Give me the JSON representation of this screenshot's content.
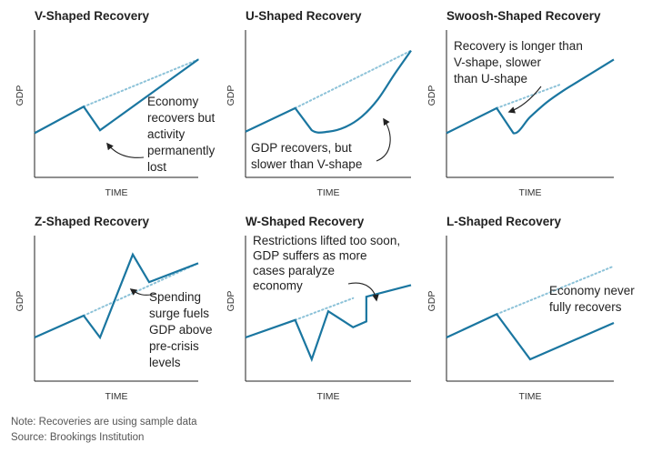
{
  "notes": {
    "note": "Note: Recoveries are using sample data",
    "source": "Source: Brookings Institution"
  },
  "colors": {
    "line": "#1a76a0",
    "trend": "#8cc2d8",
    "axis": "#222222",
    "text": "#222222"
  },
  "chart_data": [
    {
      "type": "line",
      "title": "V-Shaped Recovery",
      "xlabel": "TIME",
      "ylabel": "GDP",
      "xlim": [
        0,
        10
      ],
      "ylim": [
        0,
        10
      ],
      "series": [
        {
          "x": [
            0,
            3,
            4,
            10
          ],
          "y": [
            3,
            4.8,
            3.2,
            8
          ]
        }
      ],
      "trend": {
        "x": [
          3,
          10
        ],
        "y": [
          4.8,
          8
        ]
      },
      "annotation": {
        "lines": [
          "Economy",
          "recovers but",
          "activity",
          "permanently",
          "lost"
        ]
      }
    },
    {
      "type": "line",
      "title": "U-Shaped Recovery",
      "xlabel": "TIME",
      "ylabel": "GDP",
      "xlim": [
        0,
        10
      ],
      "ylim": [
        0,
        10
      ],
      "series": [
        {
          "x": [
            0,
            3,
            4,
            5,
            6,
            7,
            8,
            9,
            10
          ],
          "y": [
            3.1,
            4.7,
            3.2,
            3.1,
            3.4,
            4.1,
            5.3,
            7.0,
            8.6
          ]
        }
      ],
      "trend": {
        "x": [
          3,
          10
        ],
        "y": [
          4.7,
          8.6
        ]
      },
      "annotation": {
        "lines": [
          "GDP recovers, but",
          "slower than V-shape"
        ]
      }
    },
    {
      "type": "line",
      "title": "Swoosh-Shaped Recovery",
      "xlabel": "TIME",
      "ylabel": "GDP",
      "xlim": [
        0,
        10
      ],
      "ylim": [
        0,
        10
      ],
      "series": [
        {
          "x": [
            0,
            3,
            4,
            5,
            6,
            7,
            8,
            10
          ],
          "y": [
            3,
            4.7,
            3,
            4.1,
            5.1,
            5.9,
            6.6,
            8
          ]
        }
      ],
      "trend": {
        "x": [
          3,
          6.8
        ],
        "y": [
          4.7,
          6.3
        ]
      },
      "annotation": {
        "lines": [
          "Recovery is longer than",
          "V-shape, slower",
          "than U-shape"
        ]
      }
    },
    {
      "type": "line",
      "title": "Z-Shaped Recovery",
      "xlabel": "TIME",
      "ylabel": "GDP",
      "xlim": [
        0,
        10
      ],
      "ylim": [
        0,
        10
      ],
      "series": [
        {
          "x": [
            0,
            3,
            4,
            6,
            7,
            10
          ],
          "y": [
            3,
            4.5,
            3,
            8.7,
            6.8,
            8.1
          ]
        }
      ],
      "trend": {
        "x": [
          3,
          10
        ],
        "y": [
          4.5,
          8.1
        ]
      },
      "annotation": {
        "lines": [
          "Spending",
          "surge fuels",
          "GDP above",
          "pre-crisis",
          "levels"
        ]
      }
    },
    {
      "type": "line",
      "title": "W-Shaped Recovery",
      "xlabel": "TIME",
      "ylabel": "GDP",
      "xlim": [
        0,
        10
      ],
      "ylim": [
        0,
        10
      ],
      "series": [
        {
          "x": [
            0,
            3,
            4,
            5,
            6.5,
            7.3,
            7.3,
            10
          ],
          "y": [
            3,
            4.2,
            1.5,
            4.8,
            3.7,
            4.1,
            5.8,
            6.6
          ]
        }
      ],
      "trend": {
        "x": [
          3,
          6.5
        ],
        "y": [
          4.2,
          5.7
        ]
      },
      "annotation": {
        "lines": [
          "Restrictions lifted too soon,",
          "GDP suffers as more",
          "cases paralyze",
          "economy"
        ]
      }
    },
    {
      "type": "line",
      "title": "L-Shaped Recovery",
      "xlabel": "TIME",
      "ylabel": "GDP",
      "xlim": [
        0,
        10
      ],
      "ylim": [
        0,
        10
      ],
      "series": [
        {
          "x": [
            0,
            3,
            5,
            10
          ],
          "y": [
            3,
            4.6,
            1.5,
            4
          ]
        }
      ],
      "trend": {
        "x": [
          3,
          10
        ],
        "y": [
          4.6,
          7.9
        ]
      },
      "annotation": {
        "lines": [
          "Economy never",
          "fully recovers"
        ]
      }
    }
  ]
}
